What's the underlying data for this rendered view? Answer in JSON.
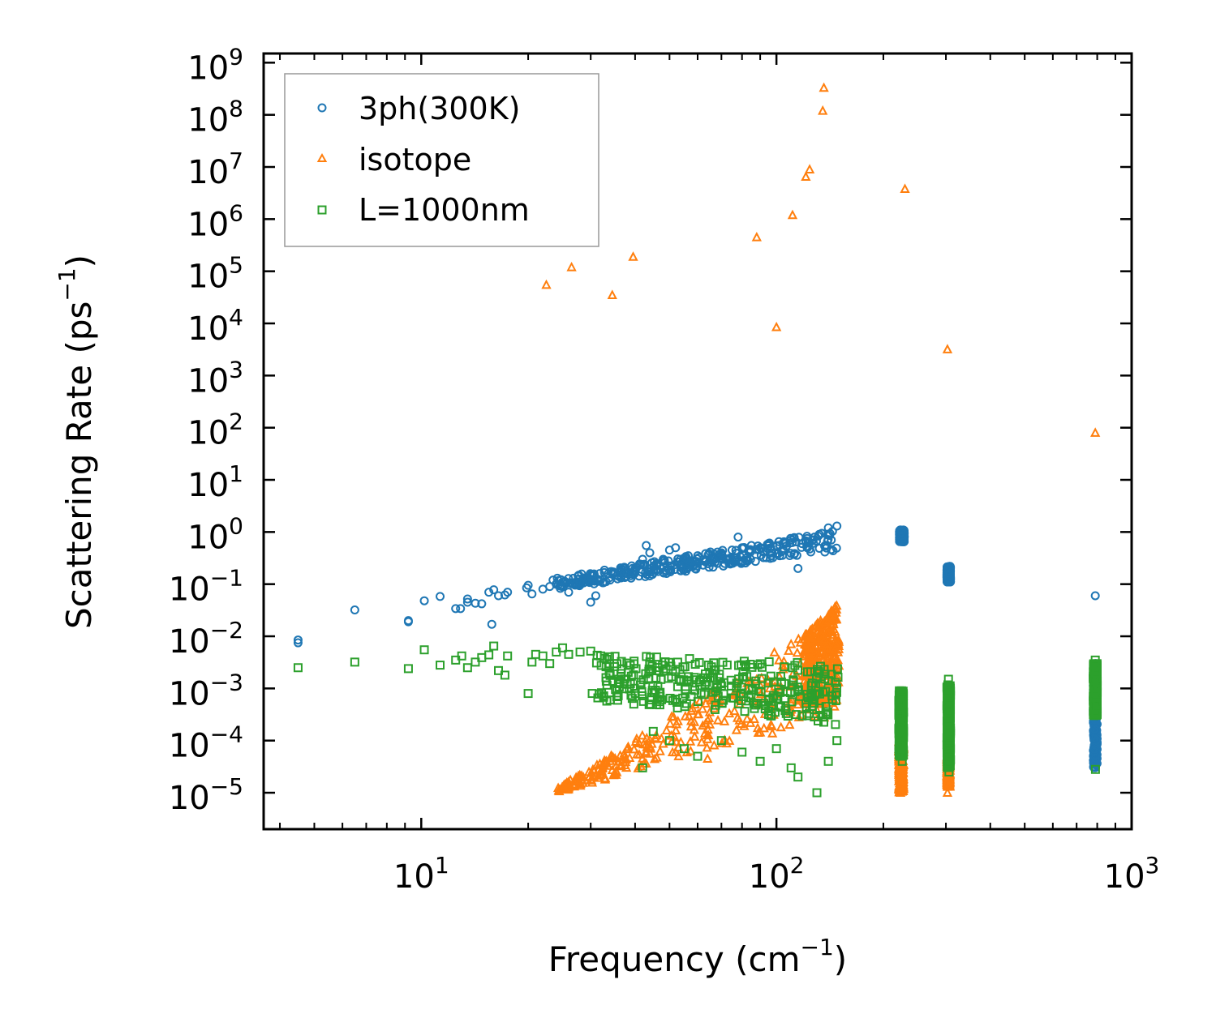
{
  "chart_data": {
    "type": "scatter",
    "title": "",
    "xlabel": "Frequency (cm",
    "xlabel_sup": "−1",
    "xlabel_close": ")",
    "ylabel": "Scattering Rate (ps",
    "ylabel_sup": "−1",
    "ylabel_close": ")",
    "xscale": "log",
    "yscale": "log",
    "xlim": [
      3.6,
      1000
    ],
    "ylim": [
      2e-06,
      1500000000
    ],
    "grid": false,
    "legend_position": "top-left",
    "x_ticks": [
      {
        "value": 10,
        "base": "10",
        "exp": "1"
      },
      {
        "value": 100,
        "base": "10",
        "exp": "2"
      },
      {
        "value": 1000,
        "base": "10",
        "exp": "3"
      }
    ],
    "y_ticks": [
      {
        "value": 1e-05,
        "base": "10",
        "exp": "−5"
      },
      {
        "value": 0.0001,
        "base": "10",
        "exp": "−4"
      },
      {
        "value": 0.001,
        "base": "10",
        "exp": "−3"
      },
      {
        "value": 0.01,
        "base": "10",
        "exp": "−2"
      },
      {
        "value": 0.1,
        "base": "10",
        "exp": "−1"
      },
      {
        "value": 1,
        "base": "10",
        "exp": "0"
      },
      {
        "value": 10,
        "base": "10",
        "exp": "1"
      },
      {
        "value": 100,
        "base": "10",
        "exp": "2"
      },
      {
        "value": 1000,
        "base": "10",
        "exp": "3"
      },
      {
        "value": 10000,
        "base": "10",
        "exp": "4"
      },
      {
        "value": 100000,
        "base": "10",
        "exp": "5"
      },
      {
        "value": 1000000,
        "base": "10",
        "exp": "6"
      },
      {
        "value": 10000000,
        "base": "10",
        "exp": "7"
      },
      {
        "value": 100000000,
        "base": "10",
        "exp": "8"
      },
      {
        "value": 1000000000,
        "base": "10",
        "exp": "9"
      }
    ],
    "series": [
      {
        "name": "3ph(300K)",
        "marker": "circle",
        "color": "#1f77b4",
        "points": [
          [
            4.5,
            0.0075
          ],
          [
            4.5,
            0.0085
          ],
          [
            6.5,
            0.032
          ],
          [
            9.2,
            0.019
          ],
          [
            9.2,
            0.02
          ],
          [
            10.2,
            0.048
          ],
          [
            11.3,
            0.058
          ],
          [
            12.5,
            0.034
          ],
          [
            12.9,
            0.034
          ],
          [
            13.5,
            0.045
          ],
          [
            13.5,
            0.052
          ],
          [
            14.2,
            0.043
          ],
          [
            14.8,
            0.042
          ],
          [
            15.5,
            0.07
          ],
          [
            16,
            0.078
          ],
          [
            16.5,
            0.06
          ],
          [
            17.2,
            0.062
          ],
          [
            17.5,
            0.07
          ],
          [
            15.8,
            0.017
          ],
          [
            19.8,
            0.085
          ],
          [
            20,
            0.095
          ],
          [
            20.5,
            0.065
          ],
          [
            22,
            0.08
          ],
          [
            23,
            0.09
          ],
          [
            23.5,
            0.12
          ],
          [
            24,
            0.1
          ],
          [
            25,
            0.11
          ],
          [
            26,
            0.07
          ],
          [
            28,
            0.11
          ],
          [
            30,
            0.045
          ],
          [
            31,
            0.06
          ],
          [
            32,
            0.12
          ],
          [
            34,
            0.12
          ],
          [
            36,
            0.14
          ],
          [
            38,
            0.16
          ],
          [
            40,
            0.2
          ],
          [
            42,
            0.3
          ],
          [
            43,
            0.55
          ],
          [
            44,
            0.4
          ],
          [
            46,
            0.25
          ],
          [
            48,
            0.3
          ],
          [
            50,
            0.45
          ],
          [
            52,
            0.5
          ],
          [
            55,
            0.3
          ],
          [
            58,
            0.28
          ],
          [
            60,
            0.35
          ],
          [
            65,
            0.3
          ],
          [
            70,
            0.4
          ],
          [
            75,
            0.45
          ],
          [
            78,
            0.8
          ],
          [
            80,
            0.5
          ],
          [
            85,
            0.55
          ],
          [
            90,
            0.5
          ],
          [
            95,
            0.6
          ],
          [
            100,
            0.55
          ],
          [
            105,
            0.65
          ],
          [
            110,
            0.7
          ],
          [
            115,
            0.2
          ],
          [
            118,
            0.6
          ],
          [
            122,
            0.75
          ],
          [
            128,
            0.8
          ],
          [
            132,
            0.9
          ],
          [
            140,
            1.2
          ],
          [
            148,
            1.3
          ],
          [
            225,
            1.0
          ],
          [
            226,
            0.7
          ],
          [
            305,
            0.2
          ],
          [
            306,
            0.13
          ],
          [
            790,
            0.06
          ]
        ],
        "bands": [
          {
            "x_from": 24,
            "x_to": 150,
            "y_from_start": 0.08,
            "y_from_end": 0.45,
            "y_to_start": 0.13,
            "y_to_end": 1.1
          },
          {
            "x_from": 222,
            "x_to": 229,
            "y_from_start": 0.65,
            "y_from_end": 0.65,
            "y_to_start": 1.1,
            "y_to_end": 1.1
          },
          {
            "x_from": 302,
            "x_to": 309,
            "y_from_start": 0.11,
            "y_from_end": 0.11,
            "y_to_start": 0.22,
            "y_to_end": 0.22
          },
          {
            "x_from": 780,
            "x_to": 800,
            "y_from_start": 3e-05,
            "y_from_end": 3e-05,
            "y_to_start": 0.003,
            "y_to_end": 0.003
          }
        ]
      },
      {
        "name": "isotope",
        "marker": "triangle",
        "color": "#ff7f0e",
        "points": [
          [
            22.5,
            55000
          ],
          [
            26.5,
            120000
          ],
          [
            34.5,
            35000
          ],
          [
            39.5,
            190000
          ],
          [
            88,
            450000
          ],
          [
            100,
            8500
          ],
          [
            111,
            1200000
          ],
          [
            121,
            6500000
          ],
          [
            124,
            9000000
          ],
          [
            135,
            120000000
          ],
          [
            136,
            330000000
          ],
          [
            230,
            3800000
          ],
          [
            303,
            3200
          ],
          [
            790,
            80
          ],
          [
            64,
            4.5e-05
          ],
          [
            303,
            1e-05
          ]
        ],
        "bands": [
          {
            "x_from": 24,
            "x_to": 150,
            "y_from_start": 1e-05,
            "y_from_end": 0.0003,
            "y_to_start": 1.2e-05,
            "y_to_end": 0.03
          },
          {
            "x_from": 120,
            "x_to": 150,
            "y_from_start": 0.0005,
            "y_from_end": 0.0005,
            "y_to_start": 0.01,
            "y_to_end": 0.05
          },
          {
            "x_from": 221,
            "x_to": 228,
            "y_from_start": 1e-05,
            "y_from_end": 1e-05,
            "y_to_start": 0.0001,
            "y_to_end": 0.0001
          },
          {
            "x_from": 302,
            "x_to": 308,
            "y_from_start": 1.3e-05,
            "y_from_end": 1.3e-05,
            "y_to_start": 5e-05,
            "y_to_end": 5e-05
          }
        ]
      },
      {
        "name": "L=1000nm",
        "marker": "square",
        "color": "#2ca02c",
        "points": [
          [
            4.5,
            0.0025
          ],
          [
            6.5,
            0.0032
          ],
          [
            9.2,
            0.0024
          ],
          [
            10.2,
            0.0055
          ],
          [
            11.3,
            0.0028
          ],
          [
            12.5,
            0.0035
          ],
          [
            13,
            0.0042
          ],
          [
            13.5,
            0.0025
          ],
          [
            14.2,
            0.0032
          ],
          [
            14.8,
            0.0039
          ],
          [
            15.5,
            0.0044
          ],
          [
            16,
            0.0065
          ],
          [
            16.5,
            0.0022
          ],
          [
            17.2,
            0.0018
          ],
          [
            17.5,
            0.0042
          ],
          [
            20,
            0.0008
          ],
          [
            20.5,
            0.0032
          ],
          [
            21,
            0.0045
          ],
          [
            22,
            0.0042
          ],
          [
            23,
            0.003
          ],
          [
            24,
            0.005
          ],
          [
            25,
            0.006
          ],
          [
            26,
            0.0045
          ],
          [
            28,
            0.005
          ],
          [
            30,
            0.0052
          ],
          [
            32,
            0.0042
          ],
          [
            34,
            0.0006
          ],
          [
            36,
            0.0015
          ],
          [
            38,
            0.0012
          ],
          [
            42,
            3e-05
          ],
          [
            45,
            0.00015
          ],
          [
            50,
            0.0001
          ],
          [
            55,
            7e-05
          ],
          [
            60,
            5e-05
          ],
          [
            70,
            0.0001
          ],
          [
            80,
            6e-05
          ],
          [
            90,
            4e-05
          ],
          [
            100,
            7e-05
          ],
          [
            110,
            3e-05
          ],
          [
            115,
            2e-05
          ],
          [
            130,
            1e-05
          ],
          [
            140,
            4e-05
          ],
          [
            148,
            0.0001
          ],
          [
            225,
            0.0009
          ],
          [
            226,
            4e-05
          ],
          [
            305,
            0.0015
          ],
          [
            306,
            2.5e-05
          ],
          [
            790,
            0.0035
          ],
          [
            791,
            2.8e-05
          ]
        ],
        "bands": [
          {
            "x_from": 30,
            "x_to": 150,
            "y_from_start": 0.0006,
            "y_from_end": 0.0002,
            "y_to_start": 0.0045,
            "y_to_end": 0.003
          },
          {
            "x_from": 221,
            "x_to": 228,
            "y_from_start": 5e-05,
            "y_from_end": 5e-05,
            "y_to_start": 0.0009,
            "y_to_end": 0.0009
          },
          {
            "x_from": 302,
            "x_to": 309,
            "y_from_start": 3e-05,
            "y_from_end": 3e-05,
            "y_to_start": 0.0012,
            "y_to_end": 0.0012
          },
          {
            "x_from": 780,
            "x_to": 800,
            "y_from_start": 0.0003,
            "y_from_end": 0.0003,
            "y_to_start": 0.003,
            "y_to_end": 0.003
          }
        ]
      }
    ]
  }
}
